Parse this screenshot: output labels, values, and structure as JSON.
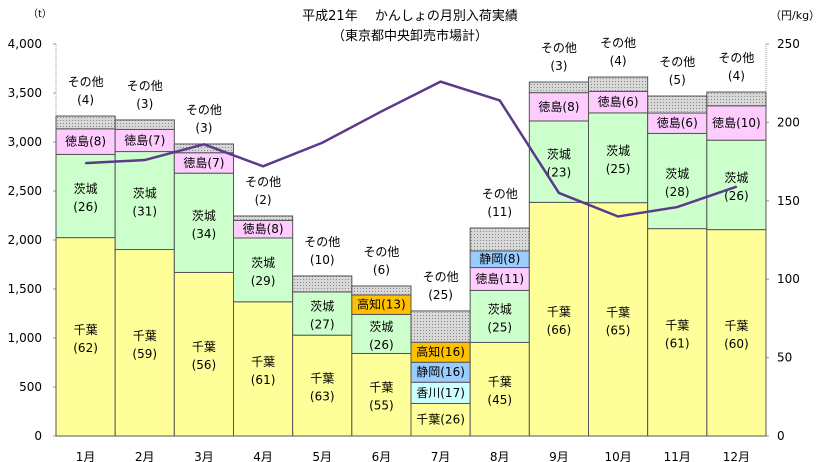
{
  "chart_data": {
    "type": "bar",
    "title": "平成21年　 かんしょの月別入荷実績",
    "subtitle": "（東京都中央卸売市場計）",
    "ylabel": "（t）",
    "y2label": "（円/kg）",
    "ylim": [
      0,
      4000
    ],
    "y2lim": [
      0,
      250
    ],
    "yticks": [
      "0",
      "500",
      "1,000",
      "1,500",
      "2,000",
      "2,500",
      "3,000",
      "3,500",
      "4,000"
    ],
    "y2ticks": [
      "0",
      "50",
      "100",
      "150",
      "200",
      "250"
    ],
    "categories": [
      "1月",
      "2月",
      "3月",
      "4月",
      "5月",
      "6月",
      "7月",
      "8月",
      "9月",
      "10月",
      "11月",
      "12月"
    ],
    "totals_t": [
      3265,
      3225,
      2980,
      2245,
      1633,
      1531,
      1276,
      2122,
      3612,
      3663,
      3469,
      3510
    ],
    "colors": {
      "千葉": "#ffff99",
      "茨城": "#ccffcc",
      "徳島": "#ffccff",
      "高知": "#ffc000",
      "静岡": "#99ccff",
      "香川": "#ccffff",
      "その他": "#c0c0c0",
      "line": "#5b3a8c"
    },
    "segments": [
      [
        [
          "千葉",
          62
        ],
        [
          "茨城",
          26
        ],
        [
          "徳島",
          8
        ],
        [
          "その他",
          4
        ]
      ],
      [
        [
          "千葉",
          59
        ],
        [
          "茨城",
          31
        ],
        [
          "徳島",
          7
        ],
        [
          "その他",
          3
        ]
      ],
      [
        [
          "千葉",
          56
        ],
        [
          "茨城",
          34
        ],
        [
          "徳島",
          7
        ],
        [
          "その他",
          3
        ]
      ],
      [
        [
          "千葉",
          61
        ],
        [
          "茨城",
          29
        ],
        [
          "徳島",
          8
        ],
        [
          "その他",
          2
        ]
      ],
      [
        [
          "千葉",
          63
        ],
        [
          "茨城",
          27
        ],
        [
          "その他",
          10
        ]
      ],
      [
        [
          "千葉",
          55
        ],
        [
          "茨城",
          26
        ],
        [
          "高知",
          13
        ],
        [
          "その他",
          6
        ]
      ],
      [
        [
          "千葉",
          26
        ],
        [
          "香川",
          17
        ],
        [
          "静岡",
          16
        ],
        [
          "高知",
          16
        ],
        [
          "その他",
          25
        ]
      ],
      [
        [
          "千葉",
          45
        ],
        [
          "茨城",
          25
        ],
        [
          "徳島",
          11
        ],
        [
          "静岡",
          8
        ],
        [
          "その他",
          11
        ]
      ],
      [
        [
          "千葉",
          66
        ],
        [
          "茨城",
          23
        ],
        [
          "徳島",
          8
        ],
        [
          "その他",
          3
        ]
      ],
      [
        [
          "千葉",
          65
        ],
        [
          "茨城",
          25
        ],
        [
          "徳島",
          6
        ],
        [
          "その他",
          4
        ]
      ],
      [
        [
          "千葉",
          61
        ],
        [
          "茨城",
          28
        ],
        [
          "徳島",
          6
        ],
        [
          "その他",
          5
        ]
      ],
      [
        [
          "千葉",
          60
        ],
        [
          "茨城",
          26
        ],
        [
          "徳島",
          10
        ],
        [
          "その他",
          4
        ]
      ]
    ],
    "price_yen_per_kg": [
      174,
      176,
      186,
      172,
      187,
      207,
      226,
      214,
      155,
      140,
      146,
      159
    ],
    "legend": "none"
  }
}
